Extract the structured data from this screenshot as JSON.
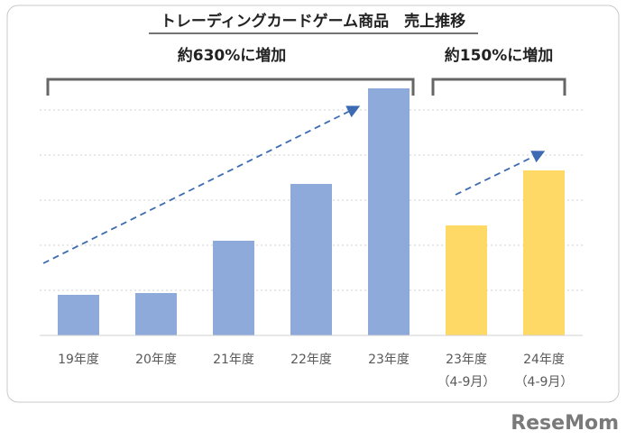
{
  "chart_data": {
    "type": "bar",
    "title": "トレーディングカードゲーム商品　売上推移",
    "annotations": [
      "約630%に増加",
      "約150%に増加"
    ],
    "categories": [
      "19年度",
      "20年度",
      "21年度",
      "22年度",
      "23年度",
      [
        "23年度",
        "（4-9月）"
      ],
      [
        "24年度",
        "（4-9月）"
      ]
    ],
    "values": [
      0.9,
      0.94,
      2.1,
      3.36,
      5.48,
      2.44,
      3.66
    ],
    "colors": [
      "#8eaadb",
      "#8eaadb",
      "#8eaadb",
      "#8eaadb",
      "#8eaadb",
      "#ffd965",
      "#ffd965"
    ],
    "ylim": [
      0,
      5.5
    ],
    "yticks": [
      0,
      1,
      2,
      3,
      4,
      5
    ],
    "grid": true,
    "watermark": "ReseMom"
  }
}
